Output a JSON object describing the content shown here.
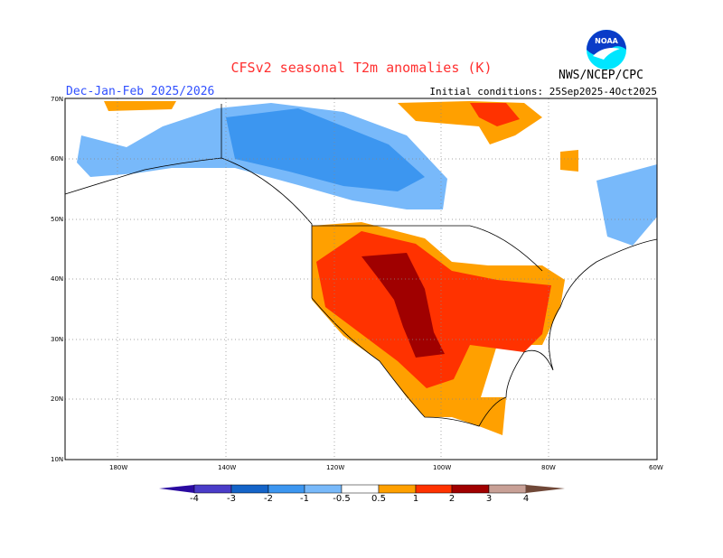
{
  "title": "CFSv2 seasonal T2m anomalies (K)",
  "season": "Dec-Jan-Feb 2025/2026",
  "initial_conditions": "Initial conditions: 25Sep2025-4Oct2025",
  "agency": "NWS/NCEP/CPC",
  "logo_text": "NOAA",
  "map": {
    "lat_labels": [
      "70N",
      "60N",
      "50N",
      "40N",
      "30N",
      "20N",
      "10N"
    ],
    "lon_labels": [
      "180W",
      "140W",
      "120W",
      "100W",
      "80W",
      "60W"
    ]
  },
  "legend": {
    "labels": [
      "-4",
      "-3",
      "-2",
      "-1",
      "-0.5",
      "0.5",
      "1",
      "2",
      "3",
      "4"
    ],
    "colors": [
      "#2a0aa0",
      "#4a3cc8",
      "#1464c8",
      "#3c96f0",
      "#78b9fa",
      "#ffffff",
      "#ffa000",
      "#ff3200",
      "#a00000",
      "#c8a096",
      "#704838"
    ]
  }
}
